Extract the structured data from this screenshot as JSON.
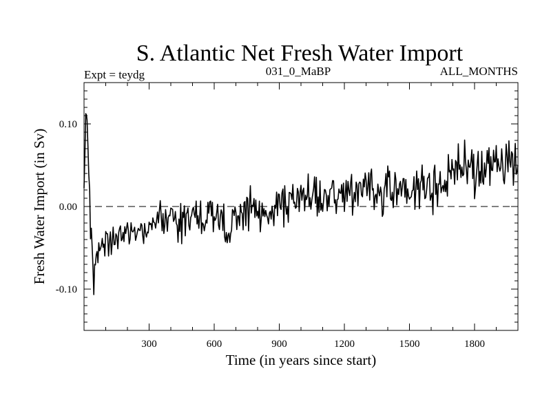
{
  "chart_data": {
    "type": "line",
    "title": "S. Atlantic Net Fresh Water Import",
    "subtitle_left": "Expt = teydg",
    "subtitle_center": "031_0_MaBP",
    "subtitle_right": "ALL_MONTHS",
    "xlabel": "Time (in years since start)",
    "ylabel": "Fresh Water Import (in Sv)",
    "xlim": [
      0,
      2000
    ],
    "ylim": [
      -0.15,
      0.15
    ],
    "x_ticks": [
      300,
      600,
      900,
      1200,
      1500,
      1800
    ],
    "x_tick_labels": [
      "300",
      "600",
      "900",
      "1200",
      "1500",
      "1800"
    ],
    "y_ticks": [
      0.1,
      0.0,
      -0.1
    ],
    "y_tick_labels": [
      "0.10",
      "0.00",
      "-0.10"
    ],
    "reference_line": {
      "y": 0.0,
      "style": "dashed"
    },
    "series": [
      {
        "name": "Net fresh water import",
        "points_per_segment": 12,
        "seed": 20240531,
        "control_x": [
          0,
          8,
          14,
          22,
          30,
          45,
          60,
          80,
          100,
          130,
          160,
          200,
          250,
          300,
          330,
          360,
          400,
          450,
          500,
          550,
          600,
          640,
          660,
          680,
          700,
          750,
          800,
          850,
          900,
          950,
          1000,
          1050,
          1100,
          1150,
          1200,
          1250,
          1300,
          1350,
          1400,
          1450,
          1500,
          1550,
          1600,
          1650,
          1700,
          1750,
          1800,
          1850,
          1900,
          1950,
          2000
        ],
        "control_y": [
          0.02,
          0.11,
          0.1,
          0.05,
          -0.03,
          -0.08,
          -0.06,
          -0.05,
          -0.045,
          -0.04,
          -0.035,
          -0.035,
          -0.03,
          -0.025,
          -0.01,
          -0.01,
          -0.02,
          -0.015,
          -0.015,
          -0.015,
          -0.01,
          -0.025,
          -0.045,
          -0.02,
          -0.015,
          -0.01,
          -0.005,
          -0.005,
          0.0,
          0.0,
          0.005,
          0.01,
          0.01,
          0.015,
          0.01,
          0.02,
          0.02,
          0.015,
          0.025,
          0.02,
          0.02,
          0.03,
          0.02,
          0.03,
          0.04,
          0.05,
          0.04,
          0.045,
          0.05,
          0.055,
          0.05
        ],
        "noise_amplitude": [
          0.005,
          0.01,
          0.01,
          0.02,
          0.025,
          0.025,
          0.022,
          0.02,
          0.02,
          0.02,
          0.02,
          0.02,
          0.02,
          0.022,
          0.022,
          0.022,
          0.022,
          0.025,
          0.025,
          0.025,
          0.025,
          0.03,
          0.03,
          0.028,
          0.028,
          0.028,
          0.028,
          0.028,
          0.03,
          0.03,
          0.03,
          0.03,
          0.03,
          0.03,
          0.03,
          0.03,
          0.03,
          0.03,
          0.03,
          0.03,
          0.03,
          0.03,
          0.03,
          0.03,
          0.035,
          0.035,
          0.035,
          0.035,
          0.035,
          0.035,
          0.035
        ]
      }
    ]
  }
}
